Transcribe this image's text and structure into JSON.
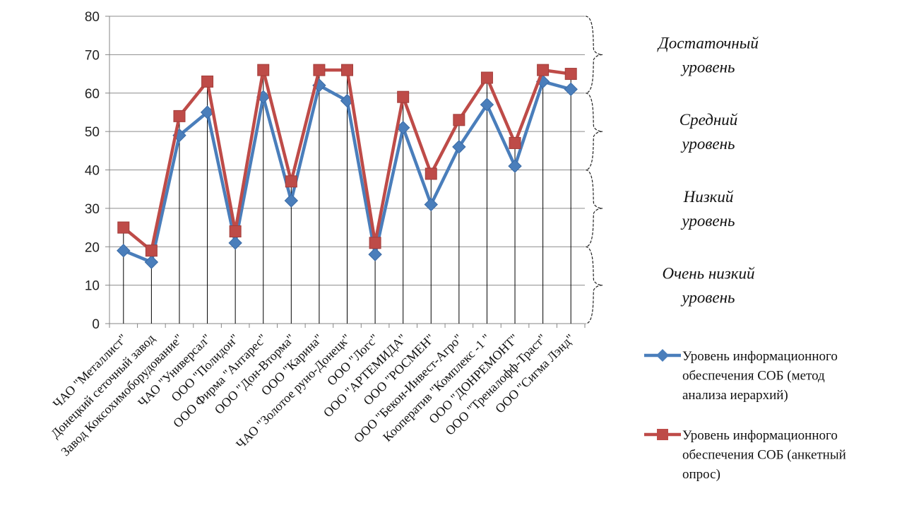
{
  "chart_data": {
    "type": "line",
    "ylim": [
      0,
      80
    ],
    "yticks": [
      "0",
      "10",
      "20",
      "30",
      "40",
      "50",
      "60",
      "70",
      "80"
    ],
    "grid": true,
    "legend_position": "bottom-right",
    "categories": [
      "ЧАО \"Металлист\"",
      "Донецкий сеточный завод",
      "Завод Коксохимоборудование\"",
      "ЧАО \"Универсал\"",
      "ООО \"Полидон\"",
      "ООО Фирма \"Антарес\"",
      "ООО \"Дон-Вторма\"",
      "ООО \"Карина\"",
      "ЧАО \"Золотое руно-Донецк\"",
      "ООО \"Логс\"",
      "ООО \"АРТЕМИДА\"",
      "ООО \"РОСМЕН\"",
      "ООО \"Бекон-Инвест-Агро\"",
      "Кооператив \"Комплекс -1 \"",
      "ООО \"ДОНРЕМОНТ\"",
      "ООО \"Треналофф-Траст\"",
      "ООО \"Сигма Лэнд\""
    ],
    "series": [
      {
        "name": "Уровень информационного обеспечения СОБ (метод анализа иерархий)",
        "name_lines": [
          "Уровень информационного",
          "обеспечения СОБ (метод",
          "анализа иерархий)"
        ],
        "color": "#4a7ebb",
        "marker": "diamond",
        "values": [
          19,
          16,
          49,
          55,
          21,
          59,
          32,
          62,
          58,
          18,
          51,
          31,
          46,
          57,
          41,
          63,
          61
        ]
      },
      {
        "name": "Уровень информационного обеспечения СОБ (анкетный опрос)",
        "name_lines": [
          "Уровень информационного",
          "обеспечения СОБ (анкетный",
          "опрос)"
        ],
        "color": "#be4b48",
        "marker": "square",
        "values": [
          25,
          19,
          54,
          63,
          24,
          66,
          37,
          66,
          66,
          21,
          59,
          39,
          53,
          64,
          47,
          66,
          65
        ]
      }
    ],
    "annotations": [
      {
        "lines": [
          "Достаточный",
          "уровень"
        ],
        "range": [
          60,
          80
        ]
      },
      {
        "lines": [
          "Средний",
          "уровень"
        ],
        "range": [
          40,
          60
        ]
      },
      {
        "lines": [
          "Низкий",
          "уровень"
        ],
        "range": [
          20,
          40
        ]
      },
      {
        "lines": [
          "Очень низкий",
          "уровень"
        ],
        "range": [
          0,
          20
        ]
      }
    ]
  }
}
